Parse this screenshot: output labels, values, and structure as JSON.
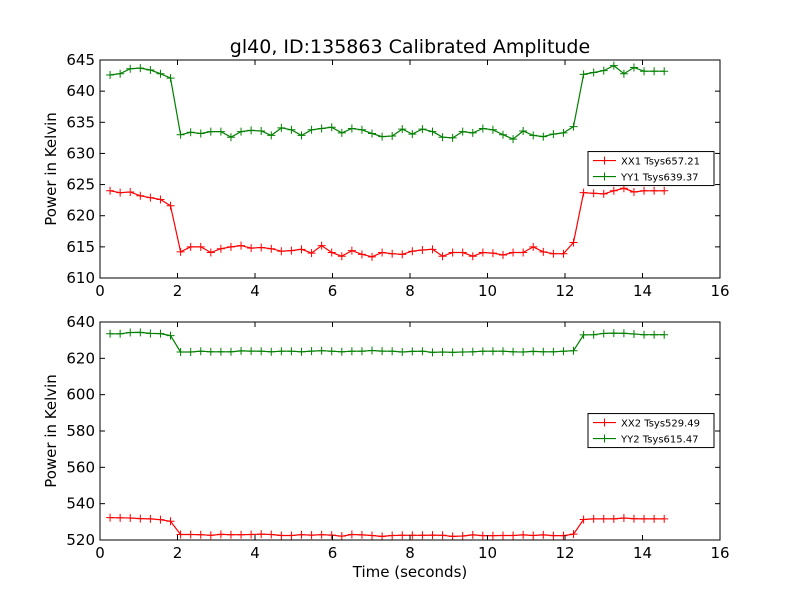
{
  "title": "gl40, ID:135863 Calibrated Amplitude",
  "chart_data": [
    {
      "type": "line",
      "ylabel": "Power in Kelvin",
      "xlabel": "",
      "xlim": [
        0,
        16
      ],
      "ylim": [
        610,
        645
      ],
      "xticks": [
        0,
        2,
        4,
        6,
        8,
        10,
        12,
        14,
        16
      ],
      "yticks": [
        610,
        615,
        620,
        625,
        630,
        635,
        640,
        645
      ],
      "legend_position": "center-right",
      "series": [
        {
          "name": "XX1 Tsys657.21",
          "color": "#ff0000",
          "x": [
            0.26,
            0.52,
            0.78,
            1.04,
            1.3,
            1.56,
            1.82,
            2.08,
            2.34,
            2.6,
            2.86,
            3.12,
            3.38,
            3.64,
            3.9,
            4.16,
            4.42,
            4.68,
            4.94,
            5.2,
            5.46,
            5.72,
            5.98,
            6.24,
            6.5,
            6.76,
            7.02,
            7.28,
            7.54,
            7.8,
            8.06,
            8.32,
            8.58,
            8.84,
            9.1,
            9.36,
            9.62,
            9.88,
            10.14,
            10.4,
            10.66,
            10.92,
            11.18,
            11.44,
            11.7,
            11.96,
            12.22,
            12.48,
            12.74,
            13.0,
            13.26,
            13.52,
            13.78,
            14.04,
            14.3,
            14.56
          ],
          "y": [
            624.0,
            623.7,
            623.8,
            623.2,
            622.9,
            622.6,
            621.6,
            614.2,
            615.0,
            615.0,
            614.1,
            614.7,
            615.0,
            615.2,
            614.8,
            614.9,
            614.7,
            614.3,
            614.4,
            614.6,
            614.0,
            615.2,
            614.1,
            613.5,
            614.4,
            613.8,
            613.4,
            614.1,
            613.9,
            613.8,
            614.3,
            614.5,
            614.6,
            613.5,
            614.1,
            614.1,
            613.5,
            614.1,
            614.0,
            613.7,
            614.1,
            614.1,
            615.0,
            614.2,
            613.9,
            613.9,
            615.7,
            623.7,
            623.6,
            623.5,
            624.0,
            624.4,
            623.8,
            624.0,
            624.0,
            624.0
          ]
        },
        {
          "name": "YY1 Tsys639.37",
          "color": "#008000",
          "x": [
            0.26,
            0.52,
            0.78,
            1.04,
            1.3,
            1.56,
            1.82,
            2.08,
            2.34,
            2.6,
            2.86,
            3.12,
            3.38,
            3.64,
            3.9,
            4.16,
            4.42,
            4.68,
            4.94,
            5.2,
            5.46,
            5.72,
            5.98,
            6.24,
            6.5,
            6.76,
            7.02,
            7.28,
            7.54,
            7.8,
            8.06,
            8.32,
            8.58,
            8.84,
            9.1,
            9.36,
            9.62,
            9.88,
            10.14,
            10.4,
            10.66,
            10.92,
            11.18,
            11.44,
            11.7,
            11.96,
            12.22,
            12.48,
            12.74,
            13.0,
            13.26,
            13.52,
            13.78,
            14.04,
            14.3,
            14.56
          ],
          "y": [
            642.6,
            642.8,
            643.6,
            643.7,
            643.4,
            642.8,
            642.1,
            633.0,
            633.4,
            633.2,
            633.5,
            633.5,
            632.6,
            633.5,
            633.7,
            633.6,
            632.9,
            634.1,
            633.8,
            632.9,
            633.8,
            634.0,
            634.2,
            633.3,
            634.0,
            633.8,
            633.2,
            632.7,
            632.8,
            633.9,
            633.1,
            633.9,
            633.5,
            632.6,
            632.5,
            633.5,
            633.3,
            634.0,
            633.8,
            633.0,
            632.3,
            633.6,
            632.9,
            632.7,
            633.1,
            633.3,
            634.3,
            642.7,
            643.0,
            643.3,
            644.1,
            642.8,
            643.8,
            643.2,
            643.2,
            643.2
          ]
        }
      ]
    },
    {
      "type": "line",
      "ylabel": "Power in Kelvin",
      "xlabel": "Time (seconds)",
      "xlim": [
        0,
        16
      ],
      "ylim": [
        520,
        640
      ],
      "xticks": [
        0,
        2,
        4,
        6,
        8,
        10,
        12,
        14,
        16
      ],
      "yticks": [
        520,
        540,
        560,
        580,
        600,
        620,
        640
      ],
      "legend_position": "center-right",
      "series": [
        {
          "name": "XX2 Tsys529.49",
          "color": "#ff0000",
          "x": [
            0.26,
            0.52,
            0.78,
            1.04,
            1.3,
            1.56,
            1.82,
            2.08,
            2.34,
            2.6,
            2.86,
            3.12,
            3.38,
            3.64,
            3.9,
            4.16,
            4.42,
            4.68,
            4.94,
            5.2,
            5.46,
            5.72,
            5.98,
            6.24,
            6.5,
            6.76,
            7.02,
            7.28,
            7.54,
            7.8,
            8.06,
            8.32,
            8.58,
            8.84,
            9.1,
            9.36,
            9.62,
            9.88,
            10.14,
            10.4,
            10.66,
            10.92,
            11.18,
            11.44,
            11.7,
            11.96,
            12.22,
            12.48,
            12.74,
            13.0,
            13.26,
            13.52,
            13.78,
            14.04,
            14.3,
            14.56
          ],
          "y": [
            532.3,
            532.2,
            532.1,
            531.8,
            531.6,
            531.2,
            530.3,
            523.0,
            523.0,
            522.9,
            522.6,
            523.1,
            522.9,
            522.9,
            523.0,
            523.2,
            523.0,
            522.5,
            522.5,
            522.9,
            522.7,
            522.9,
            522.7,
            522.1,
            523.0,
            522.8,
            522.5,
            522.0,
            522.5,
            522.6,
            522.6,
            522.6,
            522.7,
            522.6,
            522.0,
            522.2,
            522.8,
            522.4,
            522.4,
            522.5,
            522.5,
            522.8,
            522.5,
            522.8,
            522.4,
            522.4,
            523.2,
            531.3,
            531.6,
            531.6,
            531.6,
            532.1,
            531.7,
            531.6,
            531.6,
            531.6
          ]
        },
        {
          "name": "YY2 Tsys615.47",
          "color": "#008000",
          "x": [
            0.26,
            0.52,
            0.78,
            1.04,
            1.3,
            1.56,
            1.82,
            2.08,
            2.34,
            2.6,
            2.86,
            3.12,
            3.38,
            3.64,
            3.9,
            4.16,
            4.42,
            4.68,
            4.94,
            5.2,
            5.46,
            5.72,
            5.98,
            6.24,
            6.5,
            6.76,
            7.02,
            7.28,
            7.54,
            7.8,
            8.06,
            8.32,
            8.58,
            8.84,
            9.1,
            9.36,
            9.62,
            9.88,
            10.14,
            10.4,
            10.66,
            10.92,
            11.18,
            11.44,
            11.7,
            11.96,
            12.22,
            12.48,
            12.74,
            13.0,
            13.26,
            13.52,
            13.78,
            14.04,
            14.3,
            14.56
          ],
          "y": [
            633.5,
            633.5,
            634.2,
            634.3,
            633.7,
            633.6,
            632.5,
            623.5,
            623.5,
            623.9,
            623.6,
            623.6,
            623.6,
            624.1,
            624.0,
            623.9,
            623.6,
            623.9,
            623.9,
            623.6,
            624.0,
            624.2,
            623.9,
            623.6,
            623.9,
            623.9,
            624.3,
            624.0,
            623.9,
            623.5,
            623.8,
            623.9,
            623.3,
            623.5,
            623.3,
            623.5,
            623.6,
            623.9,
            623.9,
            623.9,
            623.6,
            623.5,
            623.8,
            623.6,
            623.6,
            623.9,
            624.2,
            632.9,
            633.0,
            633.7,
            633.9,
            633.8,
            633.4,
            633.0,
            633.0,
            633.0
          ]
        }
      ]
    }
  ]
}
